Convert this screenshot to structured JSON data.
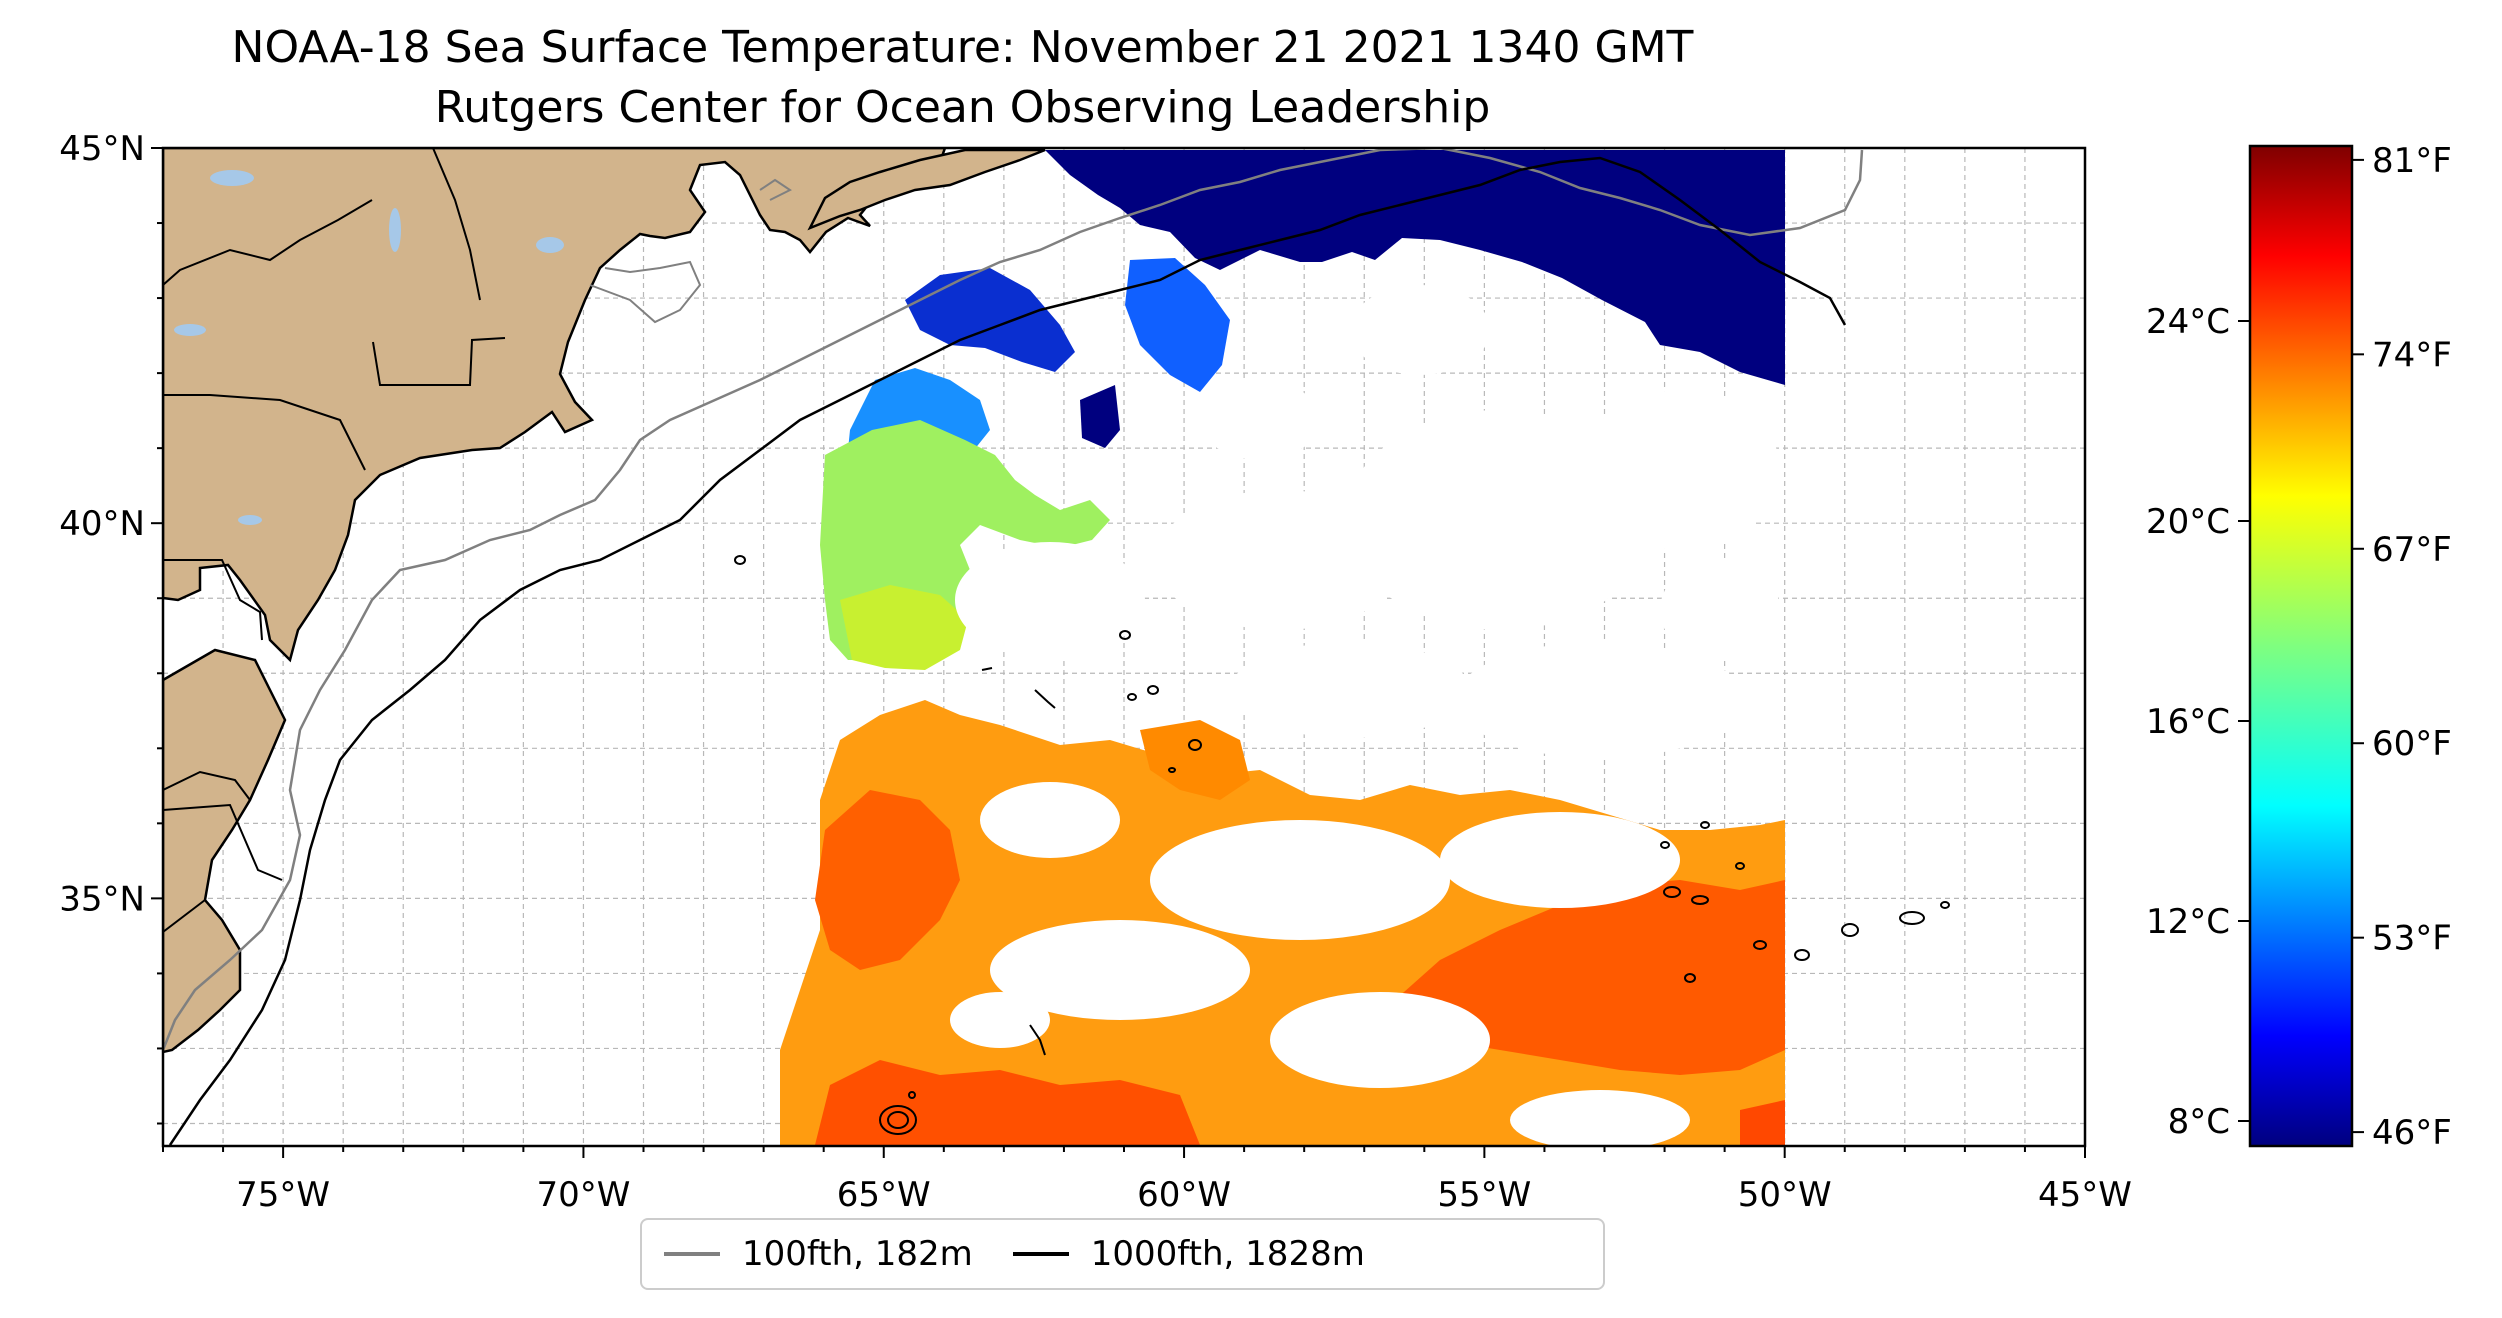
{
  "title": "NOAA-18 Sea Surface Temperature: November 21 2021 1340 GMT",
  "subtitle": "Rutgers Center for Ocean Observing Leadership",
  "map": {
    "lon_range": [
      -77,
      -45
    ],
    "lat_range": [
      31.7,
      45
    ],
    "lon_ticks": [
      {
        "value": -75,
        "label": "75°W"
      },
      {
        "value": -70,
        "label": "70°W"
      },
      {
        "value": -65,
        "label": "65°W"
      },
      {
        "value": -60,
        "label": "60°W"
      },
      {
        "value": -55,
        "label": "55°W"
      },
      {
        "value": -50,
        "label": "50°W"
      },
      {
        "value": -45,
        "label": "45°W"
      }
    ],
    "lat_ticks": [
      {
        "value": 35,
        "label": "35°N"
      },
      {
        "value": 40,
        "label": "40°N"
      },
      {
        "value": 45,
        "label": "45°N"
      }
    ],
    "grid": true,
    "land_color": "#d2b48c",
    "lake_color": "#a6c8e8"
  },
  "colorbar": {
    "colormap": "jet",
    "min_f": 45.5,
    "max_f": 81.5,
    "celsius_ticks": [
      {
        "value": 8,
        "label": "8°C"
      },
      {
        "value": 12,
        "label": "12°C"
      },
      {
        "value": 16,
        "label": "16°C"
      },
      {
        "value": 20,
        "label": "20°C"
      },
      {
        "value": 24,
        "label": "24°C"
      }
    ],
    "fahrenheit_ticks": [
      {
        "value": 46,
        "label": "46°F"
      },
      {
        "value": 53,
        "label": "53°F"
      },
      {
        "value": 60,
        "label": "60°F"
      },
      {
        "value": 67,
        "label": "67°F"
      },
      {
        "value": 74,
        "label": "74°F"
      },
      {
        "value": 81,
        "label": "81°F"
      }
    ]
  },
  "legend": {
    "items": [
      {
        "label": "100fth, 182m",
        "color": "#808080"
      },
      {
        "label": "1000fth, 1828m",
        "color": "#000000"
      }
    ]
  }
}
